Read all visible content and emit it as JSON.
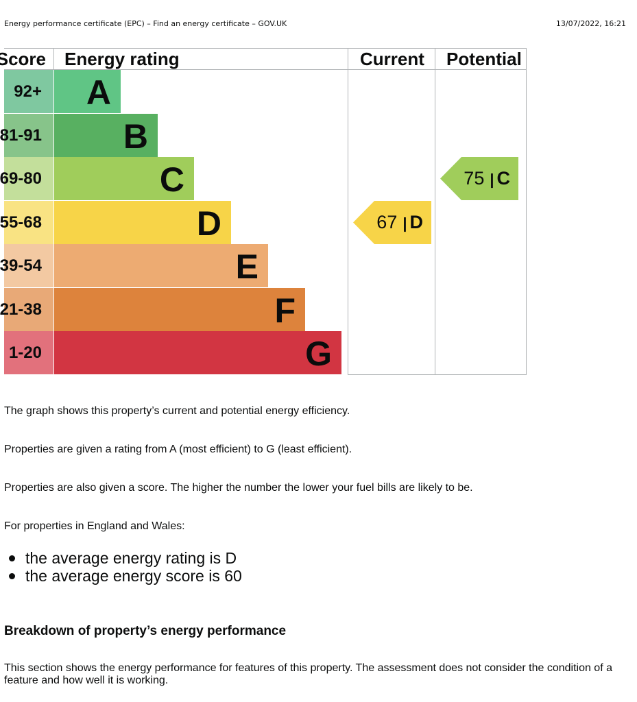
{
  "print_header": {
    "title": "Energy performance certificate (EPC) – Find an energy certificate – GOV.UK",
    "timestamp": "13/07/2022, 16:21"
  },
  "epc_chart": {
    "headers": {
      "score": "Score",
      "rating": "Energy rating",
      "current": "Current",
      "potential": "Potential"
    },
    "bands": [
      {
        "letter": "A",
        "range": "92+",
        "band_color": "#60c585",
        "score_color": "#7fc8a0",
        "fraction": 0.225
      },
      {
        "letter": "B",
        "range": "81-91",
        "band_color": "#58b061",
        "score_color": "#87c48a",
        "fraction": 0.35
      },
      {
        "letter": "C",
        "range": "69-80",
        "band_color": "#a0cd5b",
        "score_color": "#c3df9b",
        "fraction": 0.475
      },
      {
        "letter": "D",
        "range": "55-68",
        "band_color": "#f7d448",
        "score_color": "#f9e383",
        "fraction": 0.6
      },
      {
        "letter": "E",
        "range": "39-54",
        "band_color": "#edab72",
        "score_color": "#f3c9a2",
        "fraction": 0.725
      },
      {
        "letter": "F",
        "range": "21-38",
        "band_color": "#dd833c",
        "score_color": "#e8a977",
        "fraction": 0.85
      },
      {
        "letter": "G",
        "range": "1-20",
        "band_color": "#d23542",
        "score_color": "#e2717c",
        "fraction": 0.975
      }
    ],
    "current": {
      "score": "67",
      "separator": "|",
      "letter": "D",
      "band_index": 3,
      "color": "#f7d448"
    },
    "potential": {
      "score": "75",
      "separator": "|",
      "letter": "C",
      "band_index": 2,
      "color": "#a0cd5b"
    }
  },
  "content": {
    "para1": "The graph shows this property’s current and potential energy efficiency.",
    "para2": "Properties are given a rating from A (most efficient) to G (least efficient).",
    "para3": "Properties are also given a score. The higher the number the lower your fuel bills are likely to be.",
    "para4": "For properties in England and Wales:",
    "bullets": [
      "the average energy rating is D",
      "the average energy score is 60"
    ],
    "heading": "Breakdown of property’s energy performance",
    "description": "This section shows the energy performance for features of this property. The assessment does not consider the condition of a feature and how well it is working."
  }
}
